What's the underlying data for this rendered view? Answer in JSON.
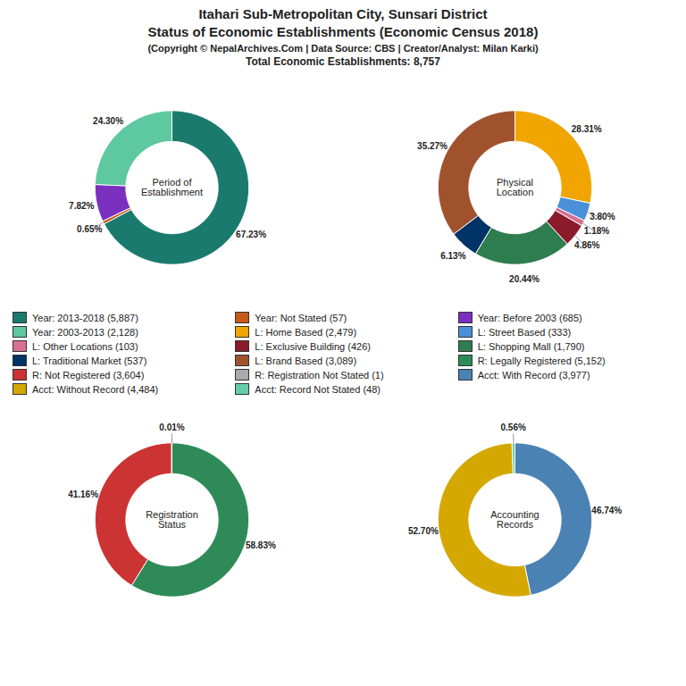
{
  "title": "Itahari Sub-Metropolitan City, Sunsari District\nStatus of Economic Establishments (Economic Census 2018)",
  "subtitle": "(Copyright © NepalArchives.Com | Data Source: CBS | Creator/Analyst: Milan Karki)",
  "annotations": [
    "Total Economic Establishments: 8,757"
  ],
  "chart_data": [
    {
      "type": "pie",
      "title": "Period of\nEstablishment",
      "categories": [
        "Year: 2013-2018 (5,887)",
        "Year: Not Stated (57)",
        "Year: Before 2003 (685)",
        "Year: 2003-2013 (2,128)"
      ],
      "values": [
        67.23,
        0.65,
        7.82,
        24.3
      ],
      "value_labels": [
        "67.23%",
        "0.65%",
        "7.82%",
        "24.30%"
      ],
      "colors": [
        "#1a7a6e",
        "#c85a17",
        "#7b2fbe",
        "#5ec8a0"
      ],
      "data_labels": true
    },
    {
      "type": "pie",
      "title": "Physical\nLocation",
      "categories": [
        "L: Home Based (2,479)",
        "L: Street Based (333)",
        "L: Other Locations (103)",
        "L: Exclusive Building (426)",
        "L: Shopping Mall (1,790)",
        "L: Traditional Market (537)",
        "L: Brand Based (3,089)"
      ],
      "values": [
        28.31,
        3.8,
        1.18,
        4.86,
        20.44,
        6.13,
        35.27
      ],
      "value_labels": [
        "28.31%",
        "3.80%",
        "1.18%",
        "4.86%",
        "20.44%",
        "6.13%",
        "35.27%"
      ],
      "colors": [
        "#f0a500",
        "#4a90d9",
        "#d87093",
        "#8b1a2a",
        "#2e7d4f",
        "#003366",
        "#a0522d"
      ],
      "data_labels": true
    },
    {
      "type": "pie",
      "title": "Registration\nStatus",
      "categories": [
        "R: Legally Registered (5,152)",
        "R: Not Registered (3,604)",
        "R: Registration Not Stated (1)"
      ],
      "values": [
        58.83,
        41.16,
        0.01
      ],
      "value_labels": [
        "58.83%",
        "41.16%",
        "0.01%"
      ],
      "colors": [
        "#2e8b57",
        "#cc3333",
        "#aaaaaa"
      ],
      "data_labels": true
    },
    {
      "type": "pie",
      "title": "Accounting\nRecords",
      "categories": [
        "Acct: With Record (3,977)",
        "Acct: Without Record (4,484)",
        "Acct: Record Not Stated (48)"
      ],
      "values": [
        46.74,
        52.7,
        0.56
      ],
      "value_labels": [
        "46.74%",
        "52.70%",
        "0.56%"
      ],
      "colors": [
        "#4a82b4",
        "#d4a800",
        "#66cdaa"
      ],
      "data_labels": true
    }
  ]
}
